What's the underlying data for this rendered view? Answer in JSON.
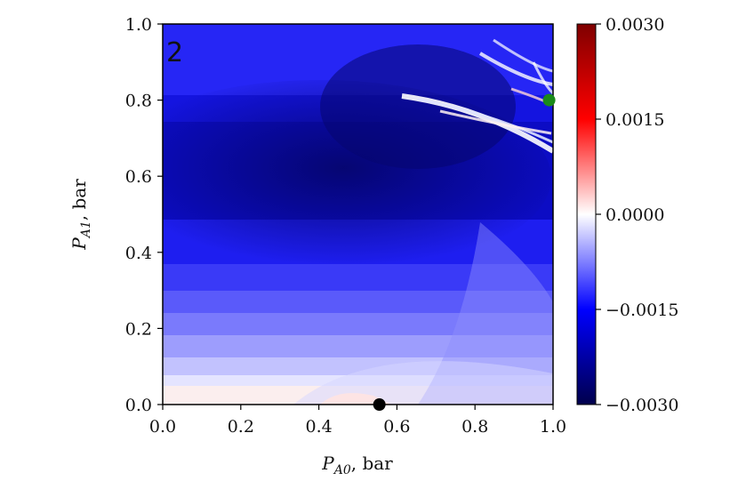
{
  "chart_data": {
    "type": "heatmap",
    "panel_label": "2",
    "xlabel": {
      "main": "P",
      "sub": "A0",
      "unit": ", bar"
    },
    "ylabel": {
      "main": "P",
      "sub": "A1",
      "unit": ", bar"
    },
    "xlim": [
      0.0,
      1.0
    ],
    "ylim": [
      0.0,
      1.0
    ],
    "x_ticks": [
      0.0,
      0.2,
      0.4,
      0.6,
      0.8,
      1.0
    ],
    "x_tick_labels": [
      "0.0",
      "0.2",
      "0.4",
      "0.6",
      "0.8",
      "1.0"
    ],
    "y_ticks": [
      0.0,
      0.2,
      0.4,
      0.6,
      0.8,
      1.0
    ],
    "y_tick_labels": [
      "0.0",
      "0.2",
      "0.4",
      "0.6",
      "0.8",
      "1.0"
    ],
    "colorbar": {
      "colormap": "seismic",
      "range": [
        -0.003,
        0.003
      ],
      "ticks": [
        -0.003,
        -0.0015,
        0.0,
        0.0015,
        0.003
      ],
      "tick_labels": [
        "−0.0030",
        "−0.0015",
        "0.0000",
        "0.0015",
        "0.0030"
      ],
      "colors": {
        "low": "#00004c",
        "mid_low": "#0000ff",
        "zero": "#ffffff",
        "mid_high": "#ff0000",
        "high": "#7f0000"
      }
    },
    "grid": false,
    "markers": [
      {
        "name": "black-point",
        "x": 0.555,
        "y": 0.0,
        "color": "#000000"
      },
      {
        "name": "green-point",
        "x": 0.99,
        "y": 0.8,
        "color": "#1a8a1a"
      }
    ],
    "field_description_values": {
      "bottom_band_near_y0": 0.00015,
      "lower_region_y_0_to_0_2": -0.0006,
      "middle_region_y_0_3_to_0_5": -0.0017,
      "dark_band_y_0_55_to_0_8": -0.0026,
      "top_region_y_0_9": -0.0018,
      "ridge_near_x_0_75_to_1_y_0_7_to_0_9": 0.0
    }
  }
}
